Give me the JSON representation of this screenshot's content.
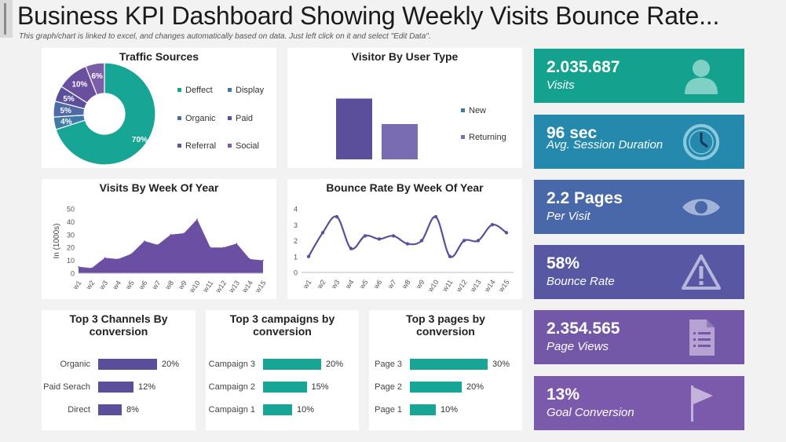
{
  "header": {
    "title": "Business KPI Dashboard Showing Weekly Visits Bounce Rate...",
    "subtitle": "This graph/chart is linked to excel, and changes automatically based on data. Just left click on it and select \"Edit Data\"."
  },
  "colors": {
    "teal": "#17a595",
    "blue": "#3f79a8",
    "purple_dark": "#5b4f9c",
    "purple": "#7d5fa8",
    "purple_light": "#8e7ab8",
    "kpi_teal": "#14a28e",
    "kpi_blue": "#2489ad",
    "kpi_indigo": "#4868aa",
    "kpi_violet": "#5857a3",
    "kpi_purple": "#7358a8",
    "kpi_purple2": "#7b5aab"
  },
  "chart_data": [
    {
      "type": "pie",
      "title": "Traffic Sources",
      "slices": [
        {
          "name": "Defect",
          "label": "Deffect",
          "value": 70,
          "display": "70%",
          "color": "#17a595"
        },
        {
          "name": "Display",
          "label": "Display",
          "value": 4,
          "display": "4%",
          "color": "#3f79a8"
        },
        {
          "name": "Organic",
          "label": "Organic",
          "value": 5,
          "display": "5%",
          "color": "#4f6ba7"
        },
        {
          "name": "Paid",
          "label": "Paid",
          "value": 5,
          "display": "5%",
          "color": "#5b4f9c"
        },
        {
          "name": "Referral",
          "label": "Referral",
          "value": 10,
          "display": "10%",
          "color": "#6a4f9f"
        },
        {
          "name": "Social",
          "label": "Social",
          "value": 6,
          "display": "6%",
          "color": "#7d5fa8"
        }
      ],
      "legend": [
        "Deffect",
        "Display",
        "Organic",
        "Paid",
        "Referral",
        "Social"
      ]
    },
    {
      "type": "bar",
      "title": "Visitor By User Type",
      "categories": [
        "New",
        "Returning"
      ],
      "values": [
        62,
        36
      ],
      "colors": [
        "#5b4f9c",
        "#7a6cb0"
      ],
      "legend": [
        "New",
        "Returning"
      ]
    },
    {
      "type": "area",
      "title": "Visits By Week Of Year",
      "ylabel": "In (1000s)",
      "ylim": [
        0,
        50
      ],
      "yticks": [
        0,
        10,
        20,
        30,
        40,
        50
      ],
      "categories": [
        "w1",
        "w2",
        "w3",
        "w4",
        "w5",
        "w6",
        "w7",
        "w8",
        "w9",
        "w10",
        "w11",
        "w12",
        "w13",
        "w14",
        "w15"
      ],
      "values": [
        5,
        4,
        12,
        11,
        15,
        25,
        22,
        30,
        31,
        42,
        20,
        20,
        23,
        11,
        10
      ]
    },
    {
      "type": "line",
      "title": "Bounce Rate By Week Of Year",
      "ylim": [
        0,
        4
      ],
      "yticks": [
        0,
        1,
        2,
        3,
        4
      ],
      "categories": [
        "w1",
        "w2",
        "w3",
        "w4",
        "w5",
        "w6",
        "w7",
        "w8",
        "w9",
        "w10",
        "w11",
        "w12",
        "w13",
        "w14",
        "w15"
      ],
      "values": [
        1.0,
        2.5,
        3.5,
        1.5,
        2.3,
        2.1,
        2.3,
        1.8,
        2.0,
        3.5,
        1.0,
        2.0,
        2.0,
        3.0,
        2.5
      ]
    }
  ],
  "kpis": [
    {
      "value": "2.035.687",
      "label": "Visits",
      "icon": "user-icon"
    },
    {
      "value": "96 sec",
      "label": "Avg. Session Duration",
      "icon": "clock-icon"
    },
    {
      "value": "2.2 Pages",
      "label": "Per Visit",
      "icon": "eye-icon"
    },
    {
      "value": "58%",
      "label": "Bounce Rate",
      "icon": "warning-icon"
    },
    {
      "value": "2.354.565",
      "label": "Page Views",
      "icon": "document-icon"
    },
    {
      "value": "13%",
      "label": "Goal Conversion",
      "icon": "flag-icon"
    }
  ],
  "top_channels": {
    "title": "Top 3 Channels By conversion",
    "items": [
      {
        "label": "Organic",
        "value": 20,
        "display": "20%"
      },
      {
        "label": "Paid Serach",
        "value": 12,
        "display": "12%"
      },
      {
        "label": "Direct",
        "value": 8,
        "display": "8%"
      }
    ]
  },
  "top_campaigns": {
    "title": "Top 3 campaigns by conversion",
    "items": [
      {
        "label": "Campaign 3",
        "value": 20,
        "display": "20%"
      },
      {
        "label": "Campaign 2",
        "value": 15,
        "display": "15%"
      },
      {
        "label": "Campaign 1",
        "value": 10,
        "display": "10%"
      }
    ]
  },
  "top_pages": {
    "title": "Top 3 pages by conversion",
    "items": [
      {
        "label": "Page 3",
        "value": 30,
        "display": "30%"
      },
      {
        "label": "Page 2",
        "value": 20,
        "display": "20%"
      },
      {
        "label": "Page 1",
        "value": 10,
        "display": "10%"
      }
    ]
  }
}
